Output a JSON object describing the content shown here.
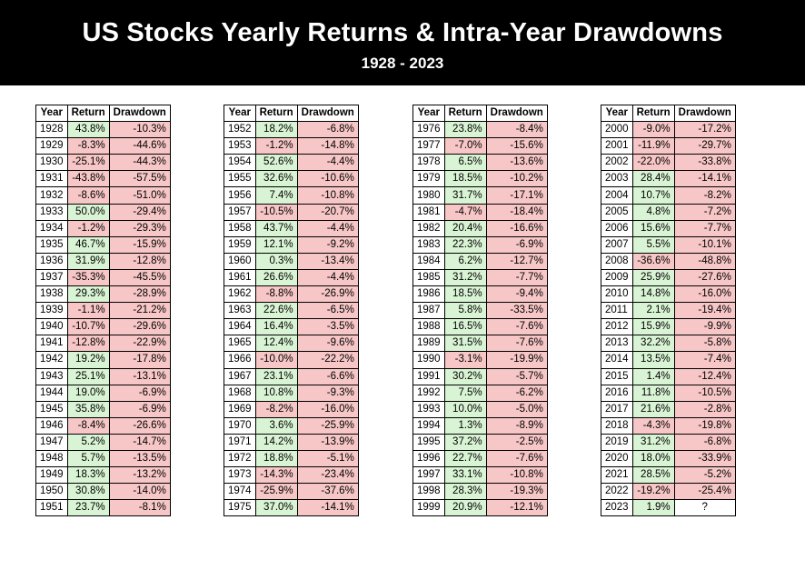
{
  "header": {
    "title": "US Stocks Yearly Returns & Intra-Year Drawdowns",
    "subtitle": "1928 - 2023"
  },
  "colors": {
    "positive": "#d9f4d4",
    "negative": "#f7c6c6",
    "banner": "#000000"
  },
  "chart_data": {
    "type": "table",
    "title": "US Stocks Yearly Returns & Intra-Year Drawdowns",
    "subtitle": "1928 - 2023",
    "columns": [
      "Year",
      "Return",
      "Drawdown"
    ],
    "rows": [
      [
        "1928",
        "43.8%",
        "-10.3%"
      ],
      [
        "1929",
        "-8.3%",
        "-44.6%"
      ],
      [
        "1930",
        "-25.1%",
        "-44.3%"
      ],
      [
        "1931",
        "-43.8%",
        "-57.5%"
      ],
      [
        "1932",
        "-8.6%",
        "-51.0%"
      ],
      [
        "1933",
        "50.0%",
        "-29.4%"
      ],
      [
        "1934",
        "-1.2%",
        "-29.3%"
      ],
      [
        "1935",
        "46.7%",
        "-15.9%"
      ],
      [
        "1936",
        "31.9%",
        "-12.8%"
      ],
      [
        "1937",
        "-35.3%",
        "-45.5%"
      ],
      [
        "1938",
        "29.3%",
        "-28.9%"
      ],
      [
        "1939",
        "-1.1%",
        "-21.2%"
      ],
      [
        "1940",
        "-10.7%",
        "-29.6%"
      ],
      [
        "1941",
        "-12.8%",
        "-22.9%"
      ],
      [
        "1942",
        "19.2%",
        "-17.8%"
      ],
      [
        "1943",
        "25.1%",
        "-13.1%"
      ],
      [
        "1944",
        "19.0%",
        "-6.9%"
      ],
      [
        "1945",
        "35.8%",
        "-6.9%"
      ],
      [
        "1946",
        "-8.4%",
        "-26.6%"
      ],
      [
        "1947",
        "5.2%",
        "-14.7%"
      ],
      [
        "1948",
        "5.7%",
        "-13.5%"
      ],
      [
        "1949",
        "18.3%",
        "-13.2%"
      ],
      [
        "1950",
        "30.8%",
        "-14.0%"
      ],
      [
        "1951",
        "23.7%",
        "-8.1%"
      ],
      [
        "1952",
        "18.2%",
        "-6.8%"
      ],
      [
        "1953",
        "-1.2%",
        "-14.8%"
      ],
      [
        "1954",
        "52.6%",
        "-4.4%"
      ],
      [
        "1955",
        "32.6%",
        "-10.6%"
      ],
      [
        "1956",
        "7.4%",
        "-10.8%"
      ],
      [
        "1957",
        "-10.5%",
        "-20.7%"
      ],
      [
        "1958",
        "43.7%",
        "-4.4%"
      ],
      [
        "1959",
        "12.1%",
        "-9.2%"
      ],
      [
        "1960",
        "0.3%",
        "-13.4%"
      ],
      [
        "1961",
        "26.6%",
        "-4.4%"
      ],
      [
        "1962",
        "-8.8%",
        "-26.9%"
      ],
      [
        "1963",
        "22.6%",
        "-6.5%"
      ],
      [
        "1964",
        "16.4%",
        "-3.5%"
      ],
      [
        "1965",
        "12.4%",
        "-9.6%"
      ],
      [
        "1966",
        "-10.0%",
        "-22.2%"
      ],
      [
        "1967",
        "23.1%",
        "-6.6%"
      ],
      [
        "1968",
        "10.8%",
        "-9.3%"
      ],
      [
        "1969",
        "-8.2%",
        "-16.0%"
      ],
      [
        "1970",
        "3.6%",
        "-25.9%"
      ],
      [
        "1971",
        "14.2%",
        "-13.9%"
      ],
      [
        "1972",
        "18.8%",
        "-5.1%"
      ],
      [
        "1973",
        "-14.3%",
        "-23.4%"
      ],
      [
        "1974",
        "-25.9%",
        "-37.6%"
      ],
      [
        "1975",
        "37.0%",
        "-14.1%"
      ],
      [
        "1976",
        "23.8%",
        "-8.4%"
      ],
      [
        "1977",
        "-7.0%",
        "-15.6%"
      ],
      [
        "1978",
        "6.5%",
        "-13.6%"
      ],
      [
        "1979",
        "18.5%",
        "-10.2%"
      ],
      [
        "1980",
        "31.7%",
        "-17.1%"
      ],
      [
        "1981",
        "-4.7%",
        "-18.4%"
      ],
      [
        "1982",
        "20.4%",
        "-16.6%"
      ],
      [
        "1983",
        "22.3%",
        "-6.9%"
      ],
      [
        "1984",
        "6.2%",
        "-12.7%"
      ],
      [
        "1985",
        "31.2%",
        "-7.7%"
      ],
      [
        "1986",
        "18.5%",
        "-9.4%"
      ],
      [
        "1987",
        "5.8%",
        "-33.5%"
      ],
      [
        "1988",
        "16.5%",
        "-7.6%"
      ],
      [
        "1989",
        "31.5%",
        "-7.6%"
      ],
      [
        "1990",
        "-3.1%",
        "-19.9%"
      ],
      [
        "1991",
        "30.2%",
        "-5.7%"
      ],
      [
        "1992",
        "7.5%",
        "-6.2%"
      ],
      [
        "1993",
        "10.0%",
        "-5.0%"
      ],
      [
        "1994",
        "1.3%",
        "-8.9%"
      ],
      [
        "1995",
        "37.2%",
        "-2.5%"
      ],
      [
        "1996",
        "22.7%",
        "-7.6%"
      ],
      [
        "1997",
        "33.1%",
        "-10.8%"
      ],
      [
        "1998",
        "28.3%",
        "-19.3%"
      ],
      [
        "1999",
        "20.9%",
        "-12.1%"
      ],
      [
        "2000",
        "-9.0%",
        "-17.2%"
      ],
      [
        "2001",
        "-11.9%",
        "-29.7%"
      ],
      [
        "2002",
        "-22.0%",
        "-33.8%"
      ],
      [
        "2003",
        "28.4%",
        "-14.1%"
      ],
      [
        "2004",
        "10.7%",
        "-8.2%"
      ],
      [
        "2005",
        "4.8%",
        "-7.2%"
      ],
      [
        "2006",
        "15.6%",
        "-7.7%"
      ],
      [
        "2007",
        "5.5%",
        "-10.1%"
      ],
      [
        "2008",
        "-36.6%",
        "-48.8%"
      ],
      [
        "2009",
        "25.9%",
        "-27.6%"
      ],
      [
        "2010",
        "14.8%",
        "-16.0%"
      ],
      [
        "2011",
        "2.1%",
        "-19.4%"
      ],
      [
        "2012",
        "15.9%",
        "-9.9%"
      ],
      [
        "2013",
        "32.2%",
        "-5.8%"
      ],
      [
        "2014",
        "13.5%",
        "-7.4%"
      ],
      [
        "2015",
        "1.4%",
        "-12.4%"
      ],
      [
        "2016",
        "11.8%",
        "-10.5%"
      ],
      [
        "2017",
        "21.6%",
        "-2.8%"
      ],
      [
        "2018",
        "-4.3%",
        "-19.8%"
      ],
      [
        "2019",
        "31.2%",
        "-6.8%"
      ],
      [
        "2020",
        "18.0%",
        "-33.9%"
      ],
      [
        "2021",
        "28.5%",
        "-5.2%"
      ],
      [
        "2022",
        "-19.2%",
        "-25.4%"
      ],
      [
        "2023",
        "1.9%",
        "?"
      ]
    ]
  }
}
